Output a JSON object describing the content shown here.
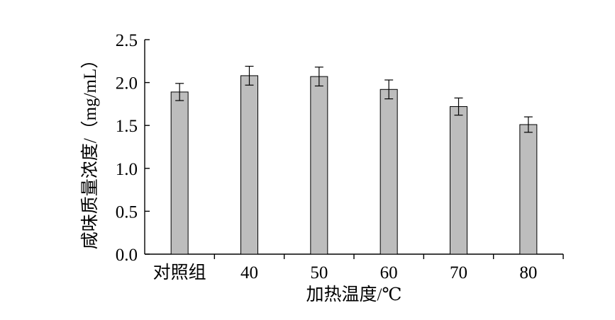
{
  "chart_data": {
    "type": "bar",
    "title": "",
    "xlabel": "加热温度/℃",
    "ylabel": "咸味质量浓度/（mg/mL）",
    "categories": [
      "对照组",
      "40",
      "50",
      "60",
      "70",
      "80"
    ],
    "values": [
      1.89,
      2.08,
      2.07,
      1.92,
      1.72,
      1.51
    ],
    "errors": [
      0.1,
      0.11,
      0.11,
      0.11,
      0.1,
      0.09
    ],
    "ylim": [
      0,
      2.5
    ],
    "yticks": [
      0.0,
      0.5,
      1.0,
      1.5,
      2.0,
      2.5
    ],
    "ytick_labels": [
      "0.0",
      "0.5",
      "1.0",
      "1.5",
      "2.0",
      "2.5"
    ],
    "grid": false,
    "bar_color": "#bdbdbd"
  }
}
